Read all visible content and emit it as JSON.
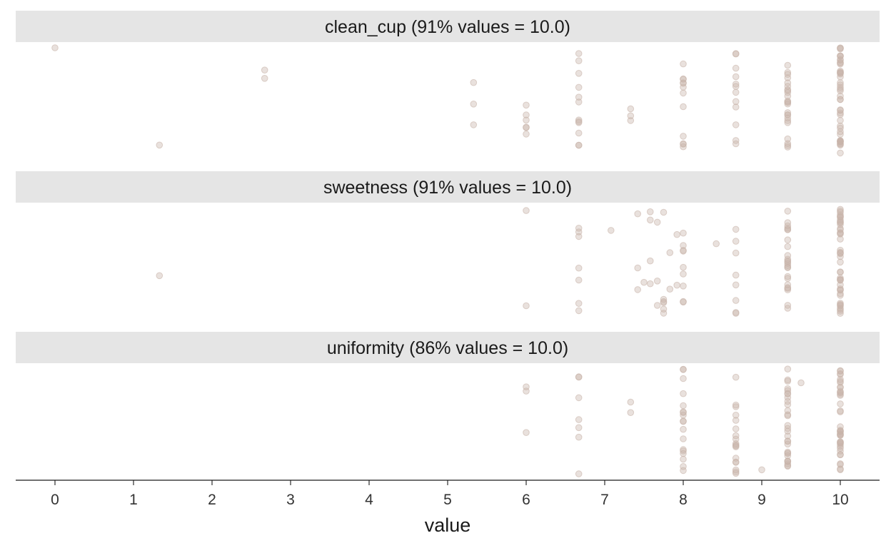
{
  "chart_data": {
    "type": "scatter",
    "xlabel": "value",
    "ylabel": "",
    "xlim": [
      -0.5,
      10.5
    ],
    "x_ticks": [
      0,
      1,
      2,
      3,
      4,
      5,
      6,
      7,
      8,
      9,
      10
    ],
    "tick_labels": [
      "0",
      "1",
      "2",
      "3",
      "4",
      "5",
      "6",
      "7",
      "8",
      "9",
      "10"
    ],
    "grid": false,
    "point_color": "#c8b4aa",
    "panels": [
      {
        "title": "clean_cup (91% values = 10.0)",
        "values": [
          0,
          1.33,
          2.67,
          2.67,
          5.33,
          5.33,
          5.33,
          6,
          6,
          6,
          6,
          6,
          6,
          6.67,
          6.67,
          6.67,
          6.67,
          6.67,
          6.67,
          6.67,
          6.67,
          6.67,
          6.67,
          6.67,
          6.67,
          7.33,
          7.33,
          7.33,
          8,
          8,
          8,
          8,
          8,
          8,
          8,
          8,
          8,
          8,
          8,
          8,
          8.67,
          8.67,
          8.67,
          8.67,
          8.67,
          8.67,
          8.67,
          8.67,
          8.67,
          8.67,
          8.67,
          8.67,
          9.33,
          9.33,
          9.33,
          9.33,
          9.33,
          9.33,
          9.33,
          9.33,
          9.33,
          9.33,
          9.33,
          9.33,
          9.33,
          9.33,
          9.33,
          9.33,
          9.33,
          9.33,
          9.33,
          9.33,
          9.33,
          9.33,
          9.33,
          9.33,
          10,
          10,
          10,
          10,
          10,
          10,
          10,
          10,
          10,
          10,
          10,
          10,
          10,
          10,
          10,
          10,
          10,
          10,
          10,
          10,
          10,
          10,
          10,
          10,
          10,
          10,
          10,
          10,
          10,
          10,
          10,
          10,
          10,
          10,
          10,
          10,
          10,
          10,
          10,
          10,
          10,
          10,
          10,
          10
        ]
      },
      {
        "title": "sweetness (91% values = 10.0)",
        "values": [
          1.33,
          6,
          6,
          6.67,
          6.67,
          6.67,
          6.67,
          6.67,
          6.67,
          6.67,
          7.08,
          7.42,
          7.42,
          7.42,
          7.5,
          7.58,
          7.58,
          7.58,
          7.58,
          7.67,
          7.67,
          7.67,
          7.75,
          7.75,
          7.75,
          7.75,
          7.75,
          7.75,
          7.83,
          7.83,
          7.92,
          7.92,
          8,
          8,
          8,
          8,
          8,
          8,
          8,
          8,
          8,
          8.42,
          8.67,
          8.67,
          8.67,
          8.67,
          8.67,
          8.67,
          8.67,
          8.67,
          9.33,
          9.33,
          9.33,
          9.33,
          9.33,
          9.33,
          9.33,
          9.33,
          9.33,
          9.33,
          9.33,
          9.33,
          9.33,
          9.33,
          9.33,
          9.33,
          9.33,
          9.33,
          9.33,
          9.33,
          9.33,
          9.33,
          9.33,
          9.33,
          10,
          10,
          10,
          10,
          10,
          10,
          10,
          10,
          10,
          10,
          10,
          10,
          10,
          10,
          10,
          10,
          10,
          10,
          10,
          10,
          10,
          10,
          10,
          10,
          10,
          10,
          10,
          10,
          10,
          10,
          10,
          10,
          10,
          10,
          10,
          10,
          10,
          10,
          10,
          10,
          10,
          10,
          10,
          10
        ]
      },
      {
        "title": "uniformity (86% values = 10.0)",
        "values": [
          6,
          6,
          6,
          6.67,
          6.67,
          6.67,
          6.67,
          6.67,
          6.67,
          6.67,
          7.33,
          7.33,
          8,
          8,
          8,
          8,
          8,
          8,
          8,
          8,
          8,
          8,
          8,
          8,
          8,
          8,
          8,
          8,
          8,
          8,
          8.67,
          8.67,
          8.67,
          8.67,
          8.67,
          8.67,
          8.67,
          8.67,
          8.67,
          8.67,
          8.67,
          8.67,
          8.67,
          8.67,
          8.67,
          8.67,
          8.67,
          8.67,
          9,
          9.33,
          9.33,
          9.33,
          9.33,
          9.33,
          9.33,
          9.33,
          9.33,
          9.33,
          9.33,
          9.33,
          9.33,
          9.33,
          9.33,
          9.33,
          9.33,
          9.33,
          9.33,
          9.33,
          9.33,
          9.33,
          9.33,
          9.33,
          9.33,
          9.33,
          9.33,
          9.33,
          9.33,
          9.33,
          9.33,
          9.5,
          10,
          10,
          10,
          10,
          10,
          10,
          10,
          10,
          10,
          10,
          10,
          10,
          10,
          10,
          10,
          10,
          10,
          10,
          10,
          10,
          10,
          10,
          10,
          10,
          10,
          10,
          10,
          10,
          10,
          10,
          10,
          10,
          10,
          10,
          10,
          10,
          10,
          10,
          10,
          10
        ]
      }
    ]
  }
}
